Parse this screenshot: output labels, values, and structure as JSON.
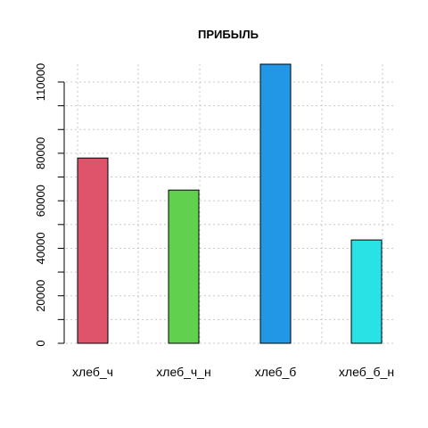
{
  "chart_data": {
    "type": "bar",
    "title": "ПРИБЫЛЬ",
    "xlabel": "",
    "ylabel": "",
    "categories": [
      "хлеб_ч",
      "хлеб_ч_н",
      "хлеб_б",
      "хлеб_б_н"
    ],
    "values": [
      78000,
      64500,
      117500,
      43500
    ],
    "colors": [
      "#DF536B",
      "#61D04F",
      "#2297E6",
      "#28E2E5"
    ],
    "ylim": [
      0,
      117500
    ],
    "y_tick_labels": [
      0,
      20000,
      40000,
      60000,
      80000,
      110000
    ],
    "y_minor_ticks": [
      0,
      10000,
      20000,
      30000,
      40000,
      50000,
      60000,
      70000,
      80000,
      90000,
      100000,
      110000
    ],
    "grid": true,
    "legend": "none"
  }
}
